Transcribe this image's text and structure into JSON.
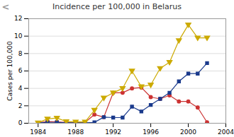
{
  "chart_data": {
    "type": "line",
    "title": "Incidence per 100,000 in Belarus",
    "ylabel": "Cases per 100,000",
    "annotation": "<",
    "x": [
      1984,
      1985,
      1986,
      1987,
      1988,
      1989,
      1990,
      1991,
      1992,
      1993,
      1994,
      1995,
      1996,
      1997,
      1998,
      1999,
      2000,
      2001,
      2002
    ],
    "series": [
      {
        "color": "#cc3333",
        "marker": "circle",
        "values": [
          0.05,
          0.2,
          0.15,
          0.1,
          0.1,
          0.1,
          1.0,
          0.7,
          3.5,
          3.5,
          4.0,
          4.1,
          3.0,
          2.8,
          3.2,
          2.5,
          2.5,
          1.8,
          0.1
        ]
      },
      {
        "color": "#1a3a8c",
        "marker": "square",
        "values": [
          0.05,
          0.1,
          0.1,
          0.05,
          0.05,
          0.05,
          0.1,
          0.7,
          0.65,
          0.65,
          1.9,
          1.35,
          2.1,
          2.8,
          3.5,
          4.8,
          5.7,
          5.7,
          6.9
        ]
      },
      {
        "color": "#ccaa00",
        "marker": "triangle-down",
        "values": [
          0.05,
          0.5,
          0.6,
          0.2,
          0.15,
          0.15,
          1.5,
          2.9,
          3.5,
          4.0,
          6.0,
          4.2,
          4.4,
          6.3,
          7.0,
          9.5,
          11.3,
          9.8,
          9.8
        ]
      }
    ],
    "xlim": [
      1983,
      2004
    ],
    "xticks": [
      1984,
      1988,
      1992,
      1996,
      2000,
      2004
    ],
    "ylim": [
      0,
      12
    ],
    "yticks": [
      0,
      2,
      4,
      6,
      8,
      10,
      12
    ],
    "grid": true
  }
}
